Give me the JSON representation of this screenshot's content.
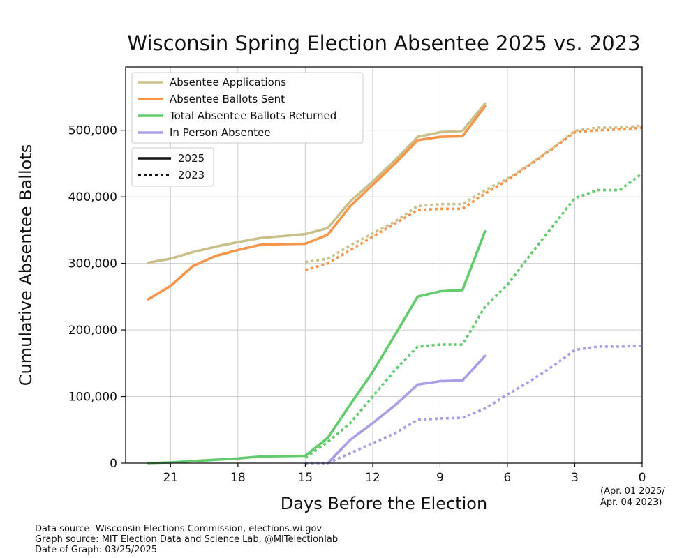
{
  "chart_data": {
    "type": "line",
    "title": "Wisconsin Spring Election Absentee 2025 vs. 2023",
    "xlabel": "Days Before the Election",
    "ylabel": "Cumulative Absentee Ballots",
    "date_note": [
      "(Apr. 01 2025/",
      "Apr. 04 2023)"
    ],
    "xlim": [
      23,
      0
    ],
    "ylim": [
      0,
      595000
    ],
    "x_ticks": [
      21,
      18,
      15,
      12,
      9,
      6,
      3,
      0
    ],
    "y_ticks": [
      0,
      100000,
      200000,
      300000,
      400000,
      500000
    ],
    "y_tick_labels": [
      "0",
      "100,000",
      "200,000",
      "300,000",
      "400,000",
      "500,000"
    ],
    "grid": true,
    "legend_position": "top-left",
    "series": [
      {
        "name": "Absentee Applications",
        "year": "2025",
        "style": "solid",
        "color": "#c9c08b",
        "points": [
          [
            22,
            301000
          ],
          [
            21,
            307000
          ],
          [
            20,
            317000
          ],
          [
            19,
            325000
          ],
          [
            18,
            332000
          ],
          [
            17,
            338000
          ],
          [
            16,
            341000
          ],
          [
            15,
            344000
          ],
          [
            14,
            353000
          ],
          [
            13,
            393000
          ],
          [
            12,
            423000
          ],
          [
            11,
            455000
          ],
          [
            10,
            490000
          ],
          [
            9,
            497000
          ],
          [
            8,
            499000
          ],
          [
            7,
            540000
          ]
        ]
      },
      {
        "name": "Absentee Ballots Sent",
        "year": "2025",
        "style": "solid",
        "color": "#f7964a",
        "points": [
          [
            22,
            246000
          ],
          [
            21,
            266000
          ],
          [
            20,
            296000
          ],
          [
            19,
            311000
          ],
          [
            18,
            320000
          ],
          [
            17,
            328000
          ],
          [
            16,
            329000
          ],
          [
            15,
            329500
          ],
          [
            14,
            343000
          ],
          [
            13,
            386000
          ],
          [
            12,
            418000
          ],
          [
            11,
            450000
          ],
          [
            10,
            485000
          ],
          [
            9,
            490000
          ],
          [
            8,
            491000
          ],
          [
            7,
            536000
          ]
        ]
      },
      {
        "name": "Total Absentee Ballots Returned",
        "year": "2025",
        "style": "solid",
        "color": "#62cc6d",
        "points": [
          [
            22,
            0
          ],
          [
            21,
            1000
          ],
          [
            20,
            3000
          ],
          [
            19,
            5000
          ],
          [
            18,
            7000
          ],
          [
            17,
            10000
          ],
          [
            16,
            10500
          ],
          [
            15,
            11000
          ],
          [
            14,
            38000
          ],
          [
            13,
            88000
          ],
          [
            12,
            137000
          ],
          [
            11,
            193000
          ],
          [
            10,
            250000
          ],
          [
            9,
            258000
          ],
          [
            8,
            260000
          ],
          [
            7,
            348000
          ]
        ]
      },
      {
        "name": "In Person Absentee",
        "year": "2025",
        "style": "solid",
        "color": "#a99ee6",
        "points": [
          [
            14,
            0
          ],
          [
            13,
            35000
          ],
          [
            12,
            60000
          ],
          [
            11,
            87000
          ],
          [
            10,
            118000
          ],
          [
            9,
            123000
          ],
          [
            8,
            124000
          ],
          [
            7,
            161000
          ]
        ]
      },
      {
        "name": "Absentee Applications",
        "year": "2023",
        "style": "dotted",
        "color": "#c9c08b",
        "points": [
          [
            15,
            302000
          ],
          [
            14,
            307000
          ],
          [
            13,
            327000
          ],
          [
            12,
            345000
          ],
          [
            11,
            363000
          ],
          [
            10,
            386000
          ],
          [
            9,
            389000
          ],
          [
            8,
            389000
          ],
          [
            7,
            410000
          ],
          [
            6,
            427000
          ],
          [
            5,
            449000
          ],
          [
            4,
            473000
          ],
          [
            3,
            499000
          ],
          [
            2,
            504000
          ],
          [
            1,
            504000
          ],
          [
            0,
            507000
          ]
        ]
      },
      {
        "name": "Absentee Ballots Sent",
        "year": "2023",
        "style": "dotted",
        "color": "#f7964a",
        "points": [
          [
            15,
            290000
          ],
          [
            14,
            300000
          ],
          [
            13,
            320000
          ],
          [
            12,
            340000
          ],
          [
            11,
            360000
          ],
          [
            10,
            380000
          ],
          [
            9,
            382000
          ],
          [
            8,
            382000
          ],
          [
            7,
            405000
          ],
          [
            6,
            425000
          ],
          [
            5,
            448000
          ],
          [
            4,
            472000
          ],
          [
            3,
            497000
          ],
          [
            2,
            500000
          ],
          [
            1,
            501000
          ],
          [
            0,
            504000
          ]
        ]
      },
      {
        "name": "Total Absentee Ballots Returned",
        "year": "2023",
        "style": "dotted",
        "color": "#62cc6d",
        "points": [
          [
            15,
            8000
          ],
          [
            14,
            32000
          ],
          [
            13,
            60000
          ],
          [
            12,
            100000
          ],
          [
            11,
            140000
          ],
          [
            10,
            175000
          ],
          [
            9,
            178000
          ],
          [
            8,
            178000
          ],
          [
            7,
            235000
          ],
          [
            6,
            268000
          ],
          [
            5,
            312000
          ],
          [
            4,
            355000
          ],
          [
            3,
            398000
          ],
          [
            2,
            410000
          ],
          [
            1,
            410000
          ],
          [
            0,
            435000
          ]
        ]
      },
      {
        "name": "In Person Absentee",
        "year": "2023",
        "style": "dotted",
        "color": "#a99ee6",
        "points": [
          [
            15,
            0
          ],
          [
            14,
            0
          ],
          [
            13,
            15000
          ],
          [
            12,
            30000
          ],
          [
            11,
            45000
          ],
          [
            10,
            65000
          ],
          [
            9,
            67000
          ],
          [
            8,
            68000
          ],
          [
            7,
            82000
          ],
          [
            6,
            103000
          ],
          [
            5,
            123000
          ],
          [
            4,
            145000
          ],
          [
            3,
            170000
          ],
          [
            2,
            175000
          ],
          [
            1,
            175000
          ],
          [
            0,
            176000
          ]
        ]
      }
    ],
    "legend_series": [
      {
        "label": "Absentee Applications",
        "color": "#c9c08b"
      },
      {
        "label": "Absentee Ballots Sent",
        "color": "#f7964a"
      },
      {
        "label": "Total Absentee Ballots Returned",
        "color": "#62cc6d"
      },
      {
        "label": "In Person Absentee",
        "color": "#a99ee6"
      }
    ],
    "legend_years": [
      {
        "label": "2025",
        "style": "solid"
      },
      {
        "label": "2023",
        "style": "dotted"
      }
    ]
  },
  "footer": {
    "line1": "Data source: Wisconsin Elections Commission, elections.wi.gov",
    "line2": "Graph source: MIT Election Data and Science Lab, @MITelectionlab",
    "line3": "Date of Graph: 03/25/2025"
  }
}
